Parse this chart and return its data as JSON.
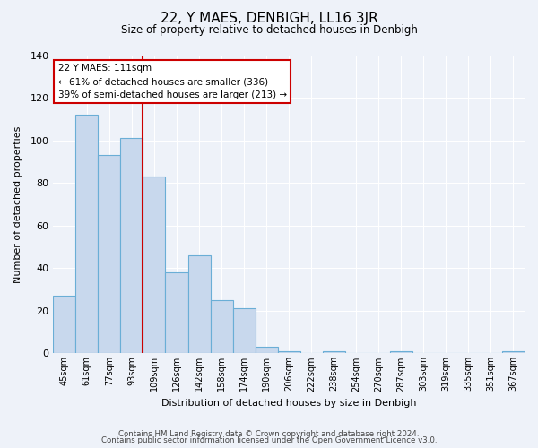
{
  "title": "22, Y MAES, DENBIGH, LL16 3JR",
  "subtitle": "Size of property relative to detached houses in Denbigh",
  "xlabel": "Distribution of detached houses by size in Denbigh",
  "ylabel": "Number of detached properties",
  "bar_labels": [
    "45sqm",
    "61sqm",
    "77sqm",
    "93sqm",
    "109sqm",
    "126sqm",
    "142sqm",
    "158sqm",
    "174sqm",
    "190sqm",
    "206sqm",
    "222sqm",
    "238sqm",
    "254sqm",
    "270sqm",
    "287sqm",
    "303sqm",
    "319sqm",
    "335sqm",
    "351sqm",
    "367sqm"
  ],
  "bar_values": [
    27,
    112,
    93,
    101,
    83,
    38,
    46,
    25,
    21,
    3,
    1,
    0,
    1,
    0,
    0,
    1,
    0,
    0,
    0,
    0,
    1
  ],
  "bar_color": "#c8d8ed",
  "bar_edge_color": "#6aaed6",
  "red_line_index": 4,
  "annotation_line1": "22 Y MAES: 111sqm",
  "annotation_line2": "← 61% of detached houses are smaller (336)",
  "annotation_line3": "39% of semi-detached houses are larger (213) →",
  "annotation_box_color": "#ffffff",
  "annotation_box_edge": "#cc0000",
  "ylim": [
    0,
    140
  ],
  "yticks": [
    0,
    20,
    40,
    60,
    80,
    100,
    120,
    140
  ],
  "footer_line1": "Contains HM Land Registry data © Crown copyright and database right 2024.",
  "footer_line2": "Contains public sector information licensed under the Open Government Licence v3.0.",
  "background_color": "#eef2f9",
  "plot_bg_color": "#eef2f9",
  "grid_color": "#ffffff"
}
